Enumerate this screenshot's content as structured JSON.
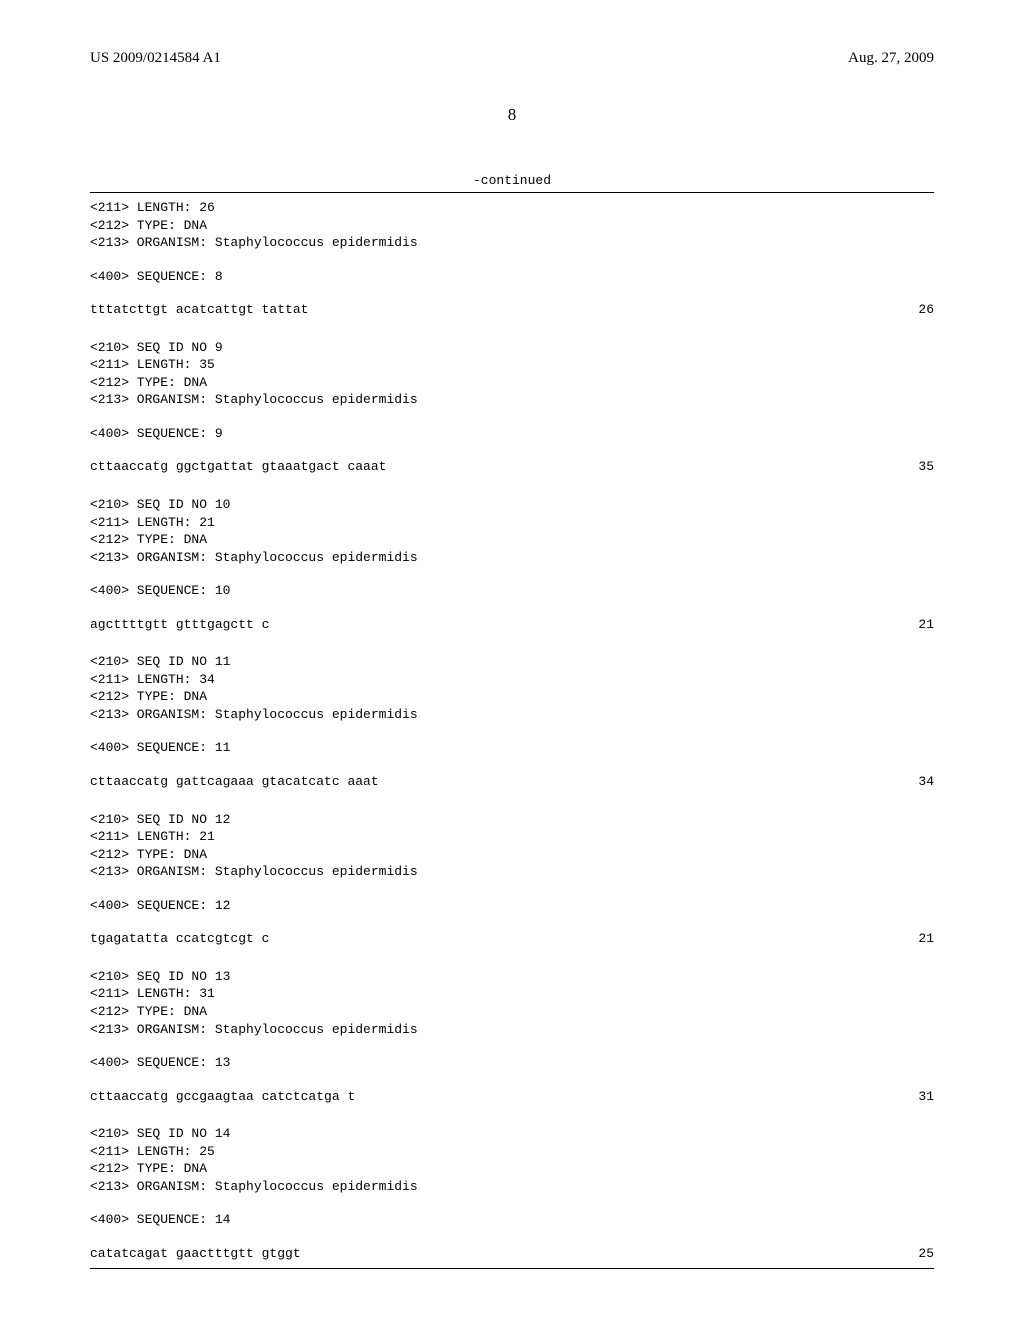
{
  "header": {
    "pub_number": "US 2009/0214584 A1",
    "pub_date": "Aug. 27, 2009"
  },
  "page_number": "8",
  "continued_label": "-continued",
  "entries": [
    {
      "meta": [
        "<211> LENGTH: 26",
        "<212> TYPE: DNA",
        "<213> ORGANISM: Staphylococcus epidermidis"
      ],
      "seq_label": "<400> SEQUENCE: 8",
      "seq": "tttatcttgt acatcattgt tattat",
      "len": "26"
    },
    {
      "meta": [
        "<210> SEQ ID NO 9",
        "<211> LENGTH: 35",
        "<212> TYPE: DNA",
        "<213> ORGANISM: Staphylococcus epidermidis"
      ],
      "seq_label": "<400> SEQUENCE: 9",
      "seq": "cttaaccatg ggctgattat gtaaatgact caaat",
      "len": "35"
    },
    {
      "meta": [
        "<210> SEQ ID NO 10",
        "<211> LENGTH: 21",
        "<212> TYPE: DNA",
        "<213> ORGANISM: Staphylococcus epidermidis"
      ],
      "seq_label": "<400> SEQUENCE: 10",
      "seq": "agcttttgtt gtttgagctt c",
      "len": "21"
    },
    {
      "meta": [
        "<210> SEQ ID NO 11",
        "<211> LENGTH: 34",
        "<212> TYPE: DNA",
        "<213> ORGANISM: Staphylococcus epidermidis"
      ],
      "seq_label": "<400> SEQUENCE: 11",
      "seq": "cttaaccatg gattcagaaa gtacatcatc aaat",
      "len": "34"
    },
    {
      "meta": [
        "<210> SEQ ID NO 12",
        "<211> LENGTH: 21",
        "<212> TYPE: DNA",
        "<213> ORGANISM: Staphylococcus epidermidis"
      ],
      "seq_label": "<400> SEQUENCE: 12",
      "seq": "tgagatatta ccatcgtcgt c",
      "len": "21"
    },
    {
      "meta": [
        "<210> SEQ ID NO 13",
        "<211> LENGTH: 31",
        "<212> TYPE: DNA",
        "<213> ORGANISM: Staphylococcus epidermidis"
      ],
      "seq_label": "<400> SEQUENCE: 13",
      "seq": "cttaaccatg gccgaagtaa catctcatga t",
      "len": "31"
    },
    {
      "meta": [
        "<210> SEQ ID NO 14",
        "<211> LENGTH: 25",
        "<212> TYPE: DNA",
        "<213> ORGANISM: Staphylococcus epidermidis"
      ],
      "seq_label": "<400> SEQUENCE: 14",
      "seq": "catatcagat gaactttgtt gtggt",
      "len": "25"
    }
  ]
}
